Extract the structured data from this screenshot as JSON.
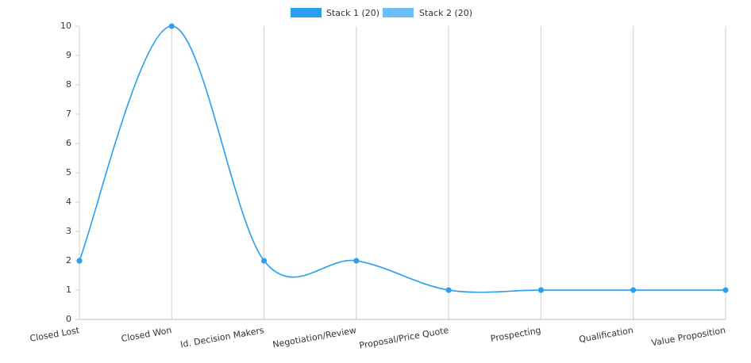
{
  "chart_data": {
    "type": "line",
    "categories": [
      "Closed Lost",
      "Closed Won",
      "Id. Decision Makers",
      "Negotiation/Review",
      "Proposal/Price Quote",
      "Prospecting",
      "Qualification",
      "Value Proposition"
    ],
    "series": [
      {
        "name": "Stack 1 (20)",
        "color": "#2a9ff0",
        "values": [
          2,
          10,
          2,
          2,
          1,
          1,
          1,
          1
        ]
      },
      {
        "name": "Stack 2 (20)",
        "color": "#6cbdf5",
        "values": [
          2,
          10,
          2,
          2,
          1,
          1,
          1,
          1
        ]
      }
    ],
    "ylim": [
      0,
      10
    ],
    "yticks": [
      0,
      1,
      2,
      3,
      4,
      5,
      6,
      7,
      8,
      9,
      10
    ],
    "grid": true
  }
}
